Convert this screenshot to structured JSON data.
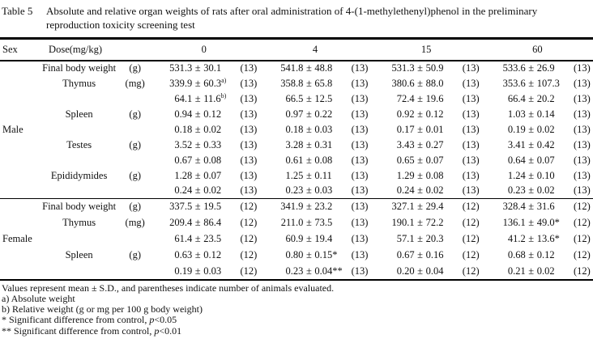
{
  "title": {
    "label": "Table 5",
    "text": "Absolute and relative organ weights of rats after oral administration of 4-(1-methylethenyl)phenol in the preliminary reproduction toxicity screening test"
  },
  "header": {
    "sex": "Sex",
    "dose": "Dose(mg/kg)",
    "doses": [
      "0",
      "4",
      "15",
      "60"
    ]
  },
  "pm": "±",
  "sections": [
    {
      "sex": "Male",
      "rows": [
        {
          "organ": "Final body weight",
          "unit": "(g)",
          "cells": [
            {
              "mean": "531.3",
              "sd": "30.1",
              "sup": "",
              "mark": "",
              "n": "(13)"
            },
            {
              "mean": "541.8",
              "sd": "48.8",
              "sup": "",
              "mark": "",
              "n": "(13)"
            },
            {
              "mean": "531.3",
              "sd": "50.9",
              "sup": "",
              "mark": "",
              "n": "(13)"
            },
            {
              "mean": "533.6",
              "sd": "26.9",
              "sup": "",
              "mark": "",
              "n": "(13)"
            }
          ]
        },
        {
          "organ": "Thymus",
          "unit": "(mg)",
          "cells": [
            {
              "mean": "339.9",
              "sd": "60.3",
              "sup": "a)",
              "mark": "",
              "n": "(13)"
            },
            {
              "mean": "358.8",
              "sd": "65.8",
              "sup": "",
              "mark": "",
              "n": "(13)"
            },
            {
              "mean": "380.6",
              "sd": "88.0",
              "sup": "",
              "mark": "",
              "n": "(13)"
            },
            {
              "mean": "353.6",
              "sd": "107.3",
              "sup": "",
              "mark": "",
              "n": "(13)"
            }
          ]
        },
        {
          "organ": "",
          "unit": "",
          "cells": [
            {
              "mean": "64.1",
              "sd": "11.6",
              "sup": "b)",
              "mark": "",
              "n": "(13)"
            },
            {
              "mean": "66.5",
              "sd": "12.5",
              "sup": "",
              "mark": "",
              "n": "(13)"
            },
            {
              "mean": "72.4",
              "sd": "19.6",
              "sup": "",
              "mark": "",
              "n": "(13)"
            },
            {
              "mean": "66.4",
              "sd": "20.2",
              "sup": "",
              "mark": "",
              "n": "(13)"
            }
          ]
        },
        {
          "organ": "Spleen",
          "unit": "(g)",
          "cells": [
            {
              "mean": "0.94",
              "sd": "0.12",
              "sup": "",
              "mark": "",
              "n": "(13)"
            },
            {
              "mean": "0.97",
              "sd": "0.22",
              "sup": "",
              "mark": "",
              "n": "(13)"
            },
            {
              "mean": "0.92",
              "sd": "0.12",
              "sup": "",
              "mark": "",
              "n": "(13)"
            },
            {
              "mean": "1.03",
              "sd": "0.14",
              "sup": "",
              "mark": "",
              "n": "(13)"
            }
          ]
        },
        {
          "organ": "",
          "unit": "",
          "cells": [
            {
              "mean": "0.18",
              "sd": "0.02",
              "sup": "",
              "mark": "",
              "n": "(13)"
            },
            {
              "mean": "0.18",
              "sd": "0.03",
              "sup": "",
              "mark": "",
              "n": "(13)"
            },
            {
              "mean": "0.17",
              "sd": "0.01",
              "sup": "",
              "mark": "",
              "n": "(13)"
            },
            {
              "mean": "0.19",
              "sd": "0.02",
              "sup": "",
              "mark": "",
              "n": "(13)"
            }
          ]
        },
        {
          "organ": "Testes",
          "unit": "(g)",
          "cells": [
            {
              "mean": "3.52",
              "sd": "0.33",
              "sup": "",
              "mark": "",
              "n": "(13)"
            },
            {
              "mean": "3.28",
              "sd": "0.31",
              "sup": "",
              "mark": "",
              "n": "(13)"
            },
            {
              "mean": "3.43",
              "sd": "0.27",
              "sup": "",
              "mark": "",
              "n": "(13)"
            },
            {
              "mean": "3.41",
              "sd": "0.42",
              "sup": "",
              "mark": "",
              "n": "(13)"
            }
          ]
        },
        {
          "organ": "",
          "unit": "",
          "cells": [
            {
              "mean": "0.67",
              "sd": "0.08",
              "sup": "",
              "mark": "",
              "n": "(13)"
            },
            {
              "mean": "0.61",
              "sd": "0.08",
              "sup": "",
              "mark": "",
              "n": "(13)"
            },
            {
              "mean": "0.65",
              "sd": "0.07",
              "sup": "",
              "mark": "",
              "n": "(13)"
            },
            {
              "mean": "0.64",
              "sd": "0.07",
              "sup": "",
              "mark": "",
              "n": "(13)"
            }
          ]
        },
        {
          "organ": "Epididymides",
          "unit": "(g)",
          "cells": [
            {
              "mean": "1.28",
              "sd": "0.07",
              "sup": "",
              "mark": "",
              "n": "(13)"
            },
            {
              "mean": "1.25",
              "sd": "0.11",
              "sup": "",
              "mark": "",
              "n": "(13)"
            },
            {
              "mean": "1.29",
              "sd": "0.08",
              "sup": "",
              "mark": "",
              "n": "(13)"
            },
            {
              "mean": "1.24",
              "sd": "0.10",
              "sup": "",
              "mark": "",
              "n": "(13)"
            }
          ]
        },
        {
          "organ": "",
          "unit": "",
          "cells": [
            {
              "mean": "0.24",
              "sd": "0.02",
              "sup": "",
              "mark": "",
              "n": "(13)"
            },
            {
              "mean": "0.23",
              "sd": "0.03",
              "sup": "",
              "mark": "",
              "n": "(13)"
            },
            {
              "mean": "0.24",
              "sd": "0.02",
              "sup": "",
              "mark": "",
              "n": "(13)"
            },
            {
              "mean": "0.23",
              "sd": "0.02",
              "sup": "",
              "mark": "",
              "n": "(13)"
            }
          ]
        }
      ]
    },
    {
      "sex": "Female",
      "rows": [
        {
          "organ": "Final body weight",
          "unit": "(g)",
          "cells": [
            {
              "mean": "337.5",
              "sd": "19.5",
              "sup": "",
              "mark": "",
              "n": "(12)"
            },
            {
              "mean": "341.9",
              "sd": "23.2",
              "sup": "",
              "mark": "",
              "n": "(13)"
            },
            {
              "mean": "327.1",
              "sd": "29.4",
              "sup": "",
              "mark": "",
              "n": "(12)"
            },
            {
              "mean": "328.4",
              "sd": "31.6",
              "sup": "",
              "mark": "",
              "n": "(12)"
            }
          ]
        },
        {
          "organ": "Thymus",
          "unit": "(mg)",
          "cells": [
            {
              "mean": "209.4",
              "sd": "86.4",
              "sup": "",
              "mark": "",
              "n": "(12)"
            },
            {
              "mean": "211.0",
              "sd": "73.5",
              "sup": "",
              "mark": "",
              "n": "(13)"
            },
            {
              "mean": "190.1",
              "sd": "72.2",
              "sup": "",
              "mark": "",
              "n": "(12)"
            },
            {
              "mean": "136.1",
              "sd": "49.0",
              "sup": "",
              "mark": "*",
              "n": "(12)"
            }
          ]
        },
        {
          "organ": "",
          "unit": "",
          "cells": [
            {
              "mean": "61.4",
              "sd": "23.5",
              "sup": "",
              "mark": "",
              "n": "(12)"
            },
            {
              "mean": "60.9",
              "sd": "19.4",
              "sup": "",
              "mark": "",
              "n": "(13)"
            },
            {
              "mean": "57.1",
              "sd": "20.3",
              "sup": "",
              "mark": "",
              "n": "(12)"
            },
            {
              "mean": "41.2",
              "sd": "13.6",
              "sup": "",
              "mark": "*",
              "n": "(12)"
            }
          ]
        },
        {
          "organ": "Spleen",
          "unit": "(g)",
          "cells": [
            {
              "mean": "0.63",
              "sd": "0.12",
              "sup": "",
              "mark": "",
              "n": "(12)"
            },
            {
              "mean": "0.80",
              "sd": "0.15",
              "sup": "",
              "mark": "*",
              "n": "(13)"
            },
            {
              "mean": "0.67",
              "sd": "0.16",
              "sup": "",
              "mark": "",
              "n": "(12)"
            },
            {
              "mean": "0.68",
              "sd": "0.12",
              "sup": "",
              "mark": "",
              "n": "(12)"
            }
          ]
        },
        {
          "organ": "",
          "unit": "",
          "cells": [
            {
              "mean": "0.19",
              "sd": "0.03",
              "sup": "",
              "mark": "",
              "n": "(12)"
            },
            {
              "mean": "0.23",
              "sd": "0.04",
              "sup": "",
              "mark": "**",
              "n": "(13)"
            },
            {
              "mean": "0.20",
              "sd": "0.04",
              "sup": "",
              "mark": "",
              "n": "(12)"
            },
            {
              "mean": "0.21",
              "sd": "0.02",
              "sup": "",
              "mark": "",
              "n": "(12)"
            }
          ]
        }
      ]
    }
  ],
  "footnotes": [
    [
      {
        "t": "Values represent mean ± S.D., and parentheses indicate number of animals evaluated."
      }
    ],
    [
      {
        "t": "a) Absolute weight"
      }
    ],
    [
      {
        "t": "b) Relative weight (g or mg per 100 g body weight)"
      }
    ],
    [
      {
        "t": "* Significant difference from control, "
      },
      {
        "t": "p",
        "i": true
      },
      {
        "t": "<0.05"
      }
    ],
    [
      {
        "t": "** Significant difference from control, "
      },
      {
        "t": "p",
        "i": true
      },
      {
        "t": "<0.01"
      }
    ]
  ]
}
